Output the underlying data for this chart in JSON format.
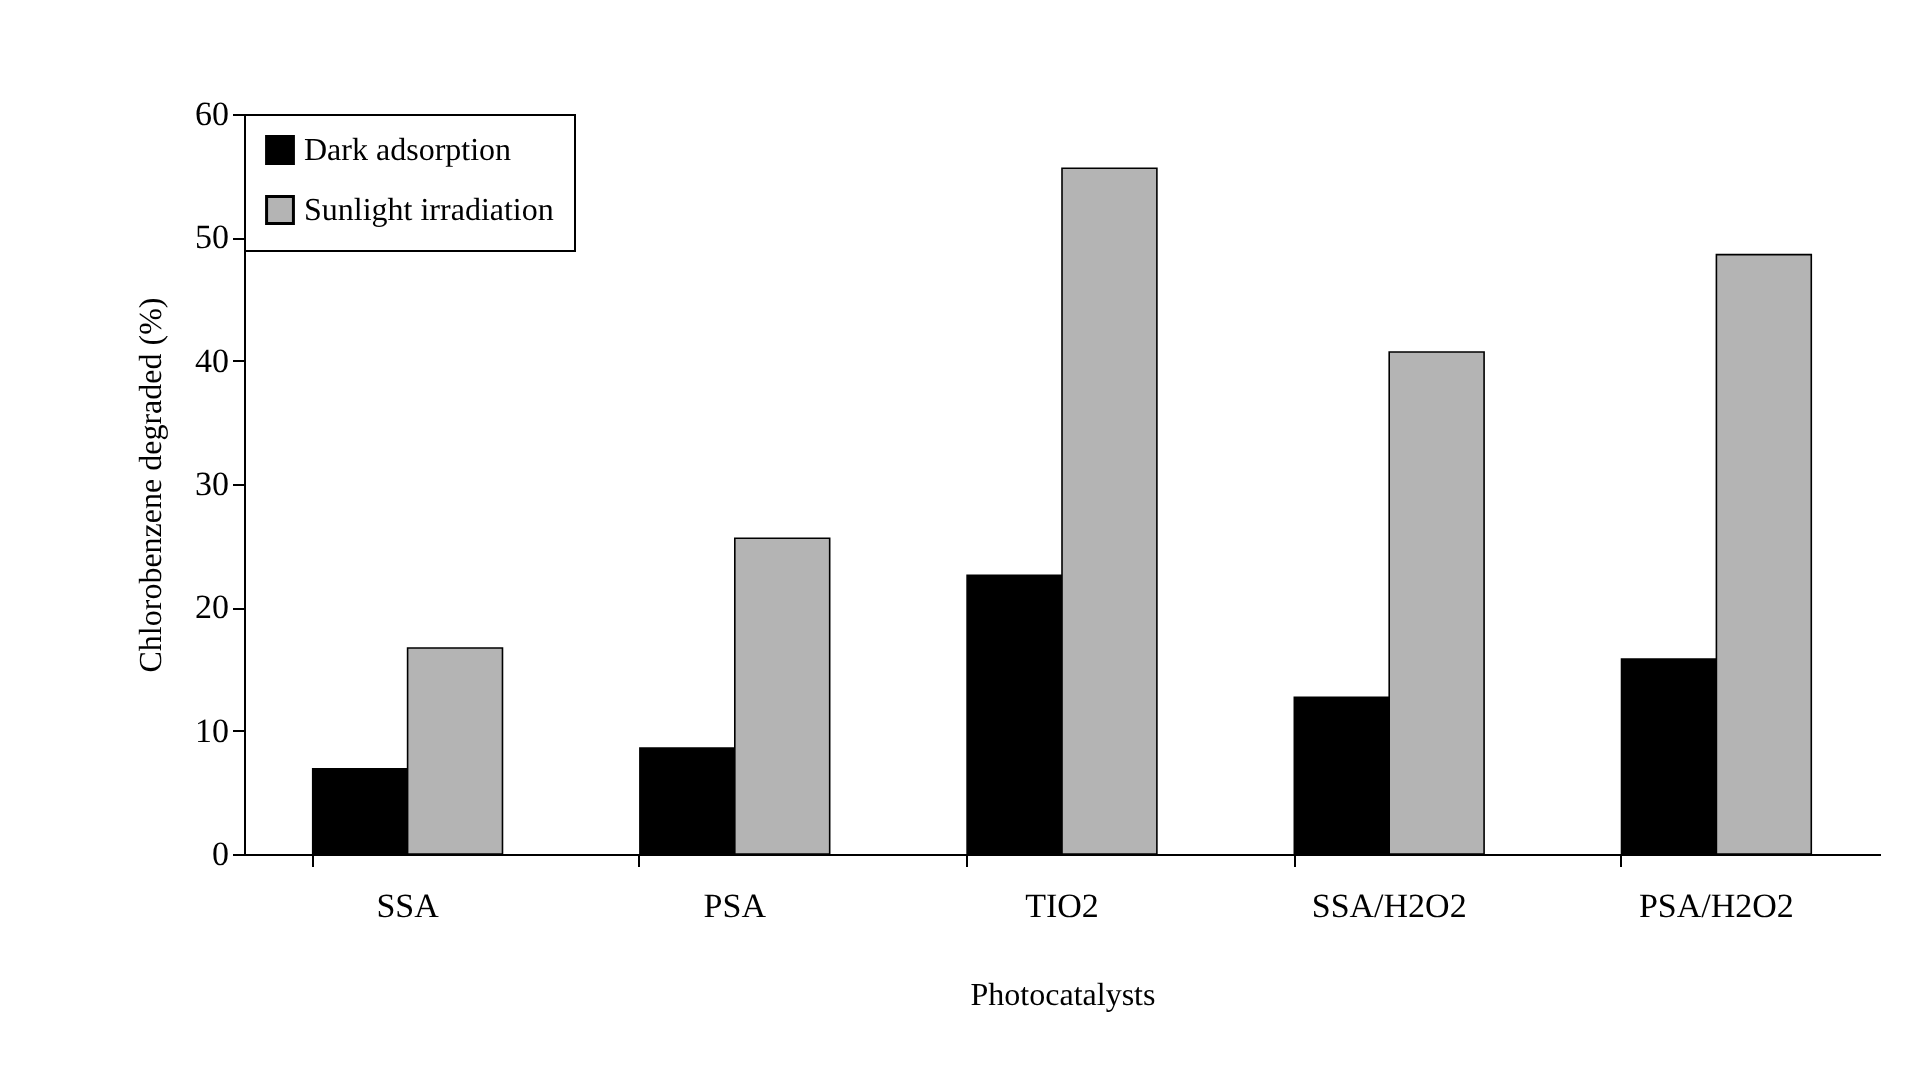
{
  "chart_data": {
    "type": "bar",
    "xlabel": "Photocatalysts",
    "ylabel": "Chlorobenzene degraded (%)",
    "categories": [
      "SSA",
      "PSA",
      "TIO2",
      "SSA/H2O2",
      "PSA/H2O2"
    ],
    "series": [
      {
        "name": "Dark adsorption",
        "color": "#000000",
        "values": [
          6.9,
          8.6,
          22.6,
          12.7,
          15.8
        ]
      },
      {
        "name": "Sunlight irradiation",
        "color": "#b4b4b4",
        "values": [
          16.7,
          25.6,
          55.6,
          40.7,
          48.6
        ]
      }
    ],
    "ylim": [
      0,
      60
    ],
    "yticks": [
      0,
      10,
      20,
      30,
      40,
      50,
      60
    ],
    "grid": false,
    "legend": "top left"
  }
}
